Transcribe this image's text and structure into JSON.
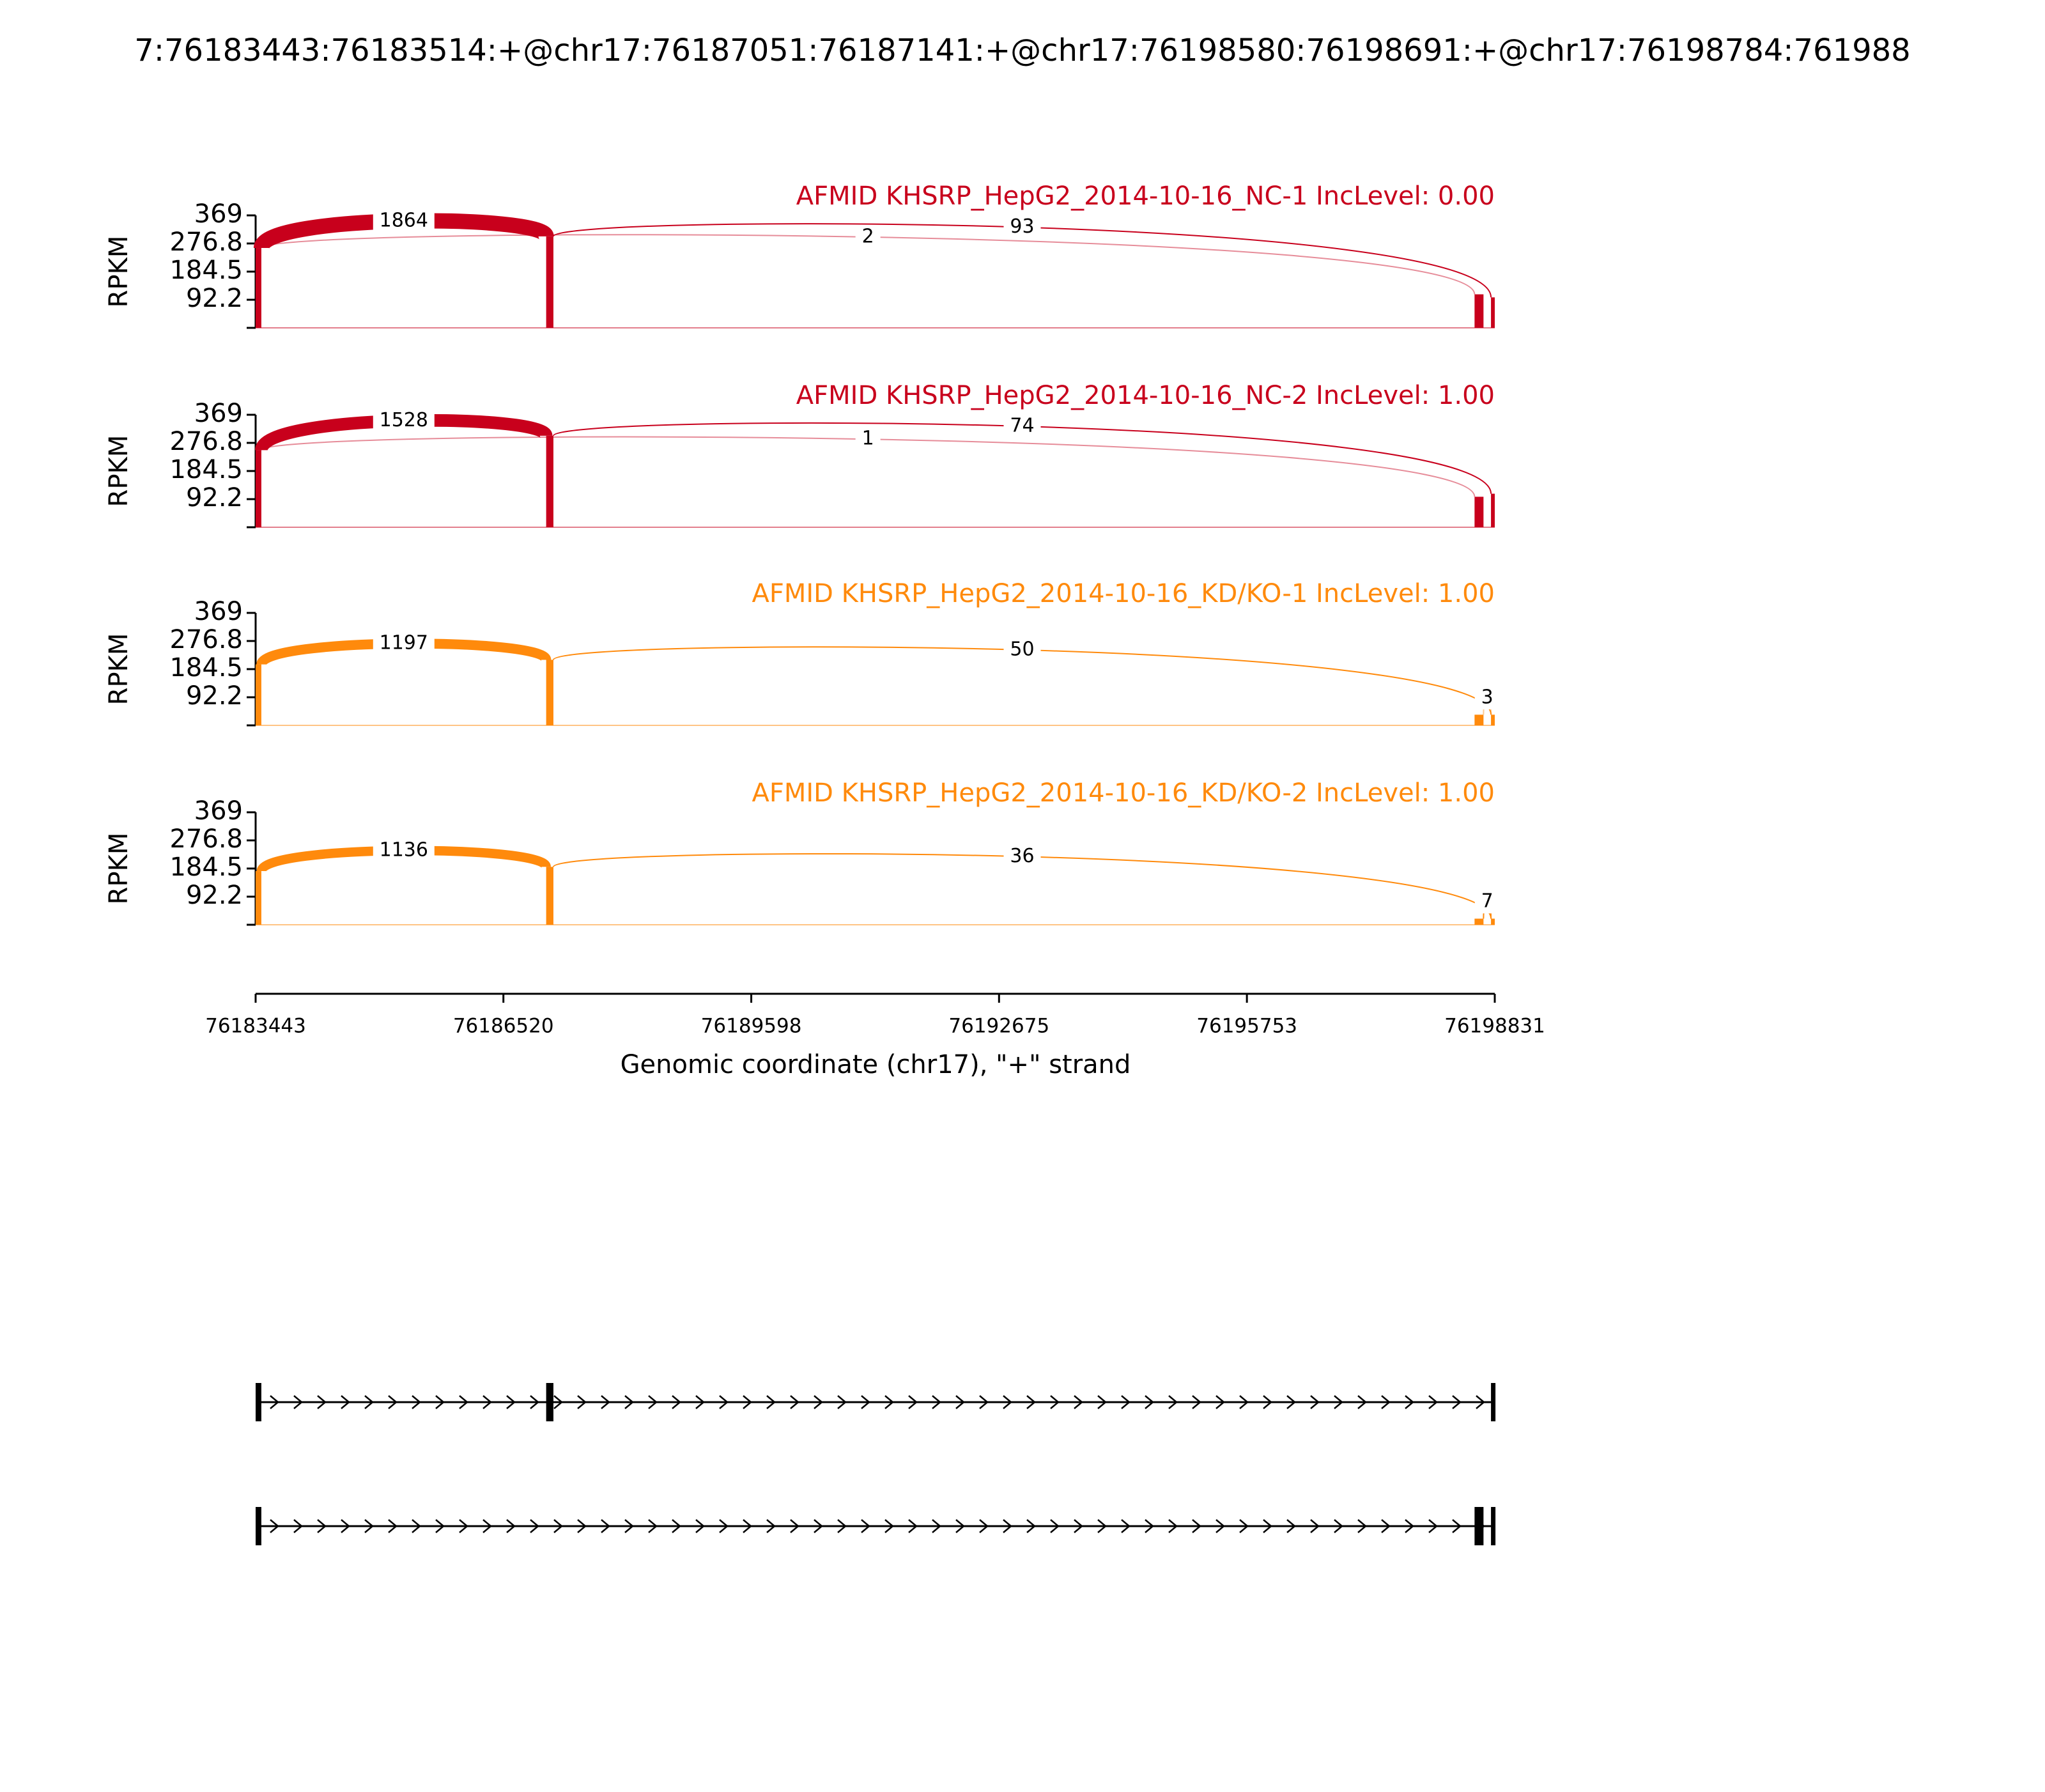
{
  "chart_data": {
    "type": "sashimi",
    "title": "7:76183443:76183514:+@chr17:76187051:76187141:+@chr17:76198580:76198691:+@chr17:76198784:761988",
    "xlabel": "Genomic coordinate (chr17), \"+\" strand",
    "xlim": [
      76183443,
      76198831
    ],
    "xticks": [
      76183443,
      76186520,
      76189598,
      76192675,
      76195753,
      76198831
    ],
    "exons": [
      [
        76183443,
        76183514
      ],
      [
        76187051,
        76187141
      ],
      [
        76198580,
        76198691
      ],
      [
        76198784,
        76198831
      ]
    ],
    "junctions": [
      [
        76183514,
        76187051
      ],
      [
        76183514,
        76198580
      ],
      [
        76187141,
        76198784
      ],
      [
        76198691,
        76198784
      ]
    ],
    "tracks": [
      {
        "title": "AFMID KHSRP_HepG2_2014-10-16_NC-1 IncLevel: 0.00",
        "ylabel": "RPKM",
        "color": "#c8001c",
        "ylim": [
          0,
          369
        ],
        "yticks": [
          92.2,
          184.5,
          276.8,
          369
        ],
        "coverage": [
          262,
          300,
          110,
          100
        ],
        "junction_counts": [
          1864,
          2,
          93,
          null
        ]
      },
      {
        "title": "AFMID KHSRP_HepG2_2014-10-16_NC-2 IncLevel: 1.00",
        "ylabel": "RPKM",
        "color": "#c8001c",
        "ylim": [
          0,
          369
        ],
        "yticks": [
          92.2,
          184.5,
          276.8,
          369
        ],
        "coverage": [
          253,
          300,
          100,
          110
        ],
        "junction_counts": [
          1528,
          1,
          74,
          null
        ]
      },
      {
        "title": "AFMID KHSRP_HepG2_2014-10-16_KD/KO-1 IncLevel: 1.00",
        "ylabel": "RPKM",
        "color": "#ff8a0c",
        "ylim": [
          0,
          369
        ],
        "yticks": [
          92.2,
          184.5,
          276.8,
          369
        ],
        "coverage": [
          200,
          215,
          35,
          35
        ],
        "junction_counts": [
          1197,
          null,
          50,
          3
        ]
      },
      {
        "title": "AFMID KHSRP_HepG2_2014-10-16_KD/KO-2 IncLevel: 1.00",
        "ylabel": "RPKM",
        "color": "#ff8a0c",
        "ylim": [
          0,
          369
        ],
        "yticks": [
          92.2,
          184.5,
          276.8,
          369
        ],
        "coverage": [
          176,
          190,
          20,
          20
        ],
        "junction_counts": [
          1136,
          null,
          36,
          7
        ]
      }
    ],
    "isoforms": [
      [
        [
          76183443,
          76183514
        ],
        [
          76187051,
          76187141
        ],
        [
          76198784,
          76198831
        ]
      ],
      [
        [
          76183443,
          76183514
        ],
        [
          76198580,
          76198691
        ],
        [
          76198784,
          76198831
        ]
      ]
    ]
  }
}
